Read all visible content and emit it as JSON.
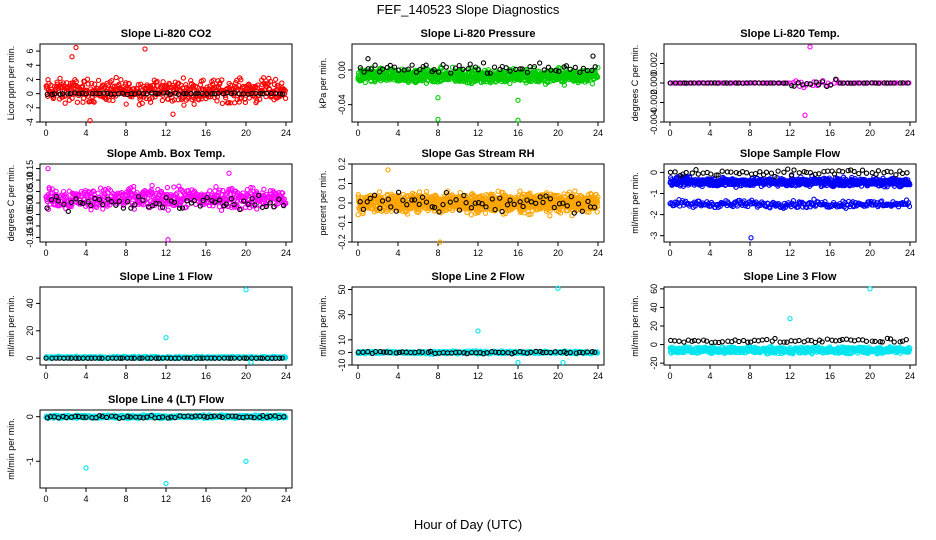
{
  "page_title": "FEF_140523  Slope Diagnostics",
  "x_axis_title": "Hour of Day (UTC)",
  "chart_data": [
    {
      "type": "scatter",
      "title": "Slope Li-820 CO2",
      "ylabel": "Licor ppm per min.",
      "xlim": [
        0,
        24
      ],
      "x_ticks": [
        0,
        4,
        8,
        12,
        16,
        20,
        24
      ],
      "ylim": [
        -4,
        7
      ],
      "y_ticks": [
        -4,
        -2,
        0,
        2,
        4,
        6
      ],
      "grid": false,
      "series": [
        {
          "color": "#ff0000",
          "pattern": "scatter",
          "center": 0.4,
          "spread": 1.8,
          "points": 500,
          "extremes": [
            {
              "x": 3.0,
              "y": 6.5
            },
            {
              "x": 9.9,
              "y": 6.3
            },
            {
              "x": 4.4,
              "y": -3.8
            },
            {
              "x": 12.7,
              "y": -2.9
            },
            {
              "x": 2.6,
              "y": 5.2
            }
          ]
        },
        {
          "color": "#000000",
          "pattern": "line",
          "center": 0.0,
          "spread": 0.3,
          "points": 60
        }
      ]
    },
    {
      "type": "scatter",
      "title": "Slope Li-820 Pressure",
      "ylabel": "kPa per min.",
      "xlim": [
        0,
        24
      ],
      "x_ticks": [
        0,
        4,
        8,
        12,
        16,
        20,
        24
      ],
      "ylim": [
        -0.06,
        0.03
      ],
      "y_ticks": [
        -0.04,
        0.0
      ],
      "grid": false,
      "series": [
        {
          "color": "#00cc00",
          "pattern": "band",
          "center": -0.007,
          "spread": 0.012,
          "points": 900,
          "extremes": [
            {
              "x": 8.0,
              "y": -0.057
            },
            {
              "x": 16.0,
              "y": -0.058
            },
            {
              "x": 8.0,
              "y": -0.032
            },
            {
              "x": 16.0,
              "y": -0.035
            }
          ]
        },
        {
          "color": "#000000",
          "pattern": "scatter",
          "center": 0.002,
          "spread": 0.006,
          "points": 60,
          "extremes": [
            {
              "x": 1.0,
              "y": 0.013
            },
            {
              "x": 23.5,
              "y": 0.016
            }
          ]
        }
      ]
    },
    {
      "type": "scatter",
      "title": "Slope Li-820 Temp.",
      "ylabel": "degrees C per min.",
      "xlim": [
        0,
        24
      ],
      "x_ticks": [
        0,
        4,
        8,
        12,
        16,
        20,
        24
      ],
      "ylim": [
        -0.004,
        0.004
      ],
      "y_ticks": [
        -0.004,
        -0.002,
        0.0,
        0.002
      ],
      "grid": false,
      "series": [
        {
          "color": "#ff00ff",
          "pattern": "line",
          "center": 0.0,
          "spread": 5e-05,
          "points": 90,
          "burst": {
            "x_from": 12,
            "x_to": 17,
            "spread": 0.0013
          },
          "extremes": [
            {
              "x": 14.0,
              "y": 0.0037
            },
            {
              "x": 13.5,
              "y": -0.0033
            }
          ]
        },
        {
          "color": "#000000",
          "pattern": "line",
          "center": 0.0,
          "spread": 3e-05,
          "points": 60,
          "burst": {
            "x_from": 12,
            "x_to": 17,
            "spread": 0.0012
          }
        }
      ]
    },
    {
      "type": "scatter",
      "title": "Slope Amb. Box Temp.",
      "ylabel": "degrees C per min.",
      "xlim": [
        0,
        24
      ],
      "x_ticks": [
        0,
        4,
        8,
        12,
        16,
        20,
        24
      ],
      "ylim": [
        -0.17,
        0.17
      ],
      "y_ticks": [
        -0.15,
        -0.1,
        -0.05,
        0.0,
        0.05,
        0.1,
        0.15
      ],
      "grid": false,
      "series": [
        {
          "color": "#ff00ff",
          "pattern": "scatter",
          "center": 0.02,
          "spread": 0.05,
          "points": 550,
          "extremes": [
            {
              "x": 0.2,
              "y": 0.15
            },
            {
              "x": 12.2,
              "y": -0.16
            },
            {
              "x": 18.3,
              "y": 0.13
            }
          ]
        },
        {
          "color": "#000000",
          "pattern": "scatter",
          "center": 0.0,
          "spread": 0.04,
          "points": 60
        }
      ]
    },
    {
      "type": "scatter",
      "title": "Slope Gas Stream RH",
      "ylabel": "percent per min.",
      "xlim": [
        0,
        24
      ],
      "x_ticks": [
        0,
        4,
        8,
        12,
        16,
        20,
        24
      ],
      "ylim": [
        -0.2,
        0.2
      ],
      "y_ticks": [
        -0.2,
        -0.1,
        0.0,
        0.1,
        0.2
      ],
      "grid": false,
      "series": [
        {
          "color": "#ffa500",
          "pattern": "band",
          "center": 0.0,
          "spread": 0.07,
          "points": 1100,
          "extremes": [
            {
              "x": 8.2,
              "y": -0.2
            },
            {
              "x": 3.0,
              "y": 0.17
            }
          ]
        },
        {
          "color": "#000000",
          "pattern": "scatter",
          "center": 0.0,
          "spread": 0.06,
          "points": 60
        }
      ]
    },
    {
      "type": "scatter",
      "title": "Slope Sample Flow",
      "ylabel": "ml/min per min.",
      "xlim": [
        0,
        24
      ],
      "x_ticks": [
        0,
        4,
        8,
        12,
        16,
        20,
        24
      ],
      "ylim": [
        -3.3,
        0.4
      ],
      "y_ticks": [
        -3,
        -2,
        -1,
        0
      ],
      "grid": false,
      "series": [
        {
          "color": "#0000ff",
          "pattern": "band",
          "center": -0.45,
          "spread": 0.3,
          "points": 700,
          "extremes": [
            {
              "x": 8.1,
              "y": -3.1
            }
          ]
        },
        {
          "color": "#0000ff",
          "pattern": "band",
          "center": -1.5,
          "spread": 0.25,
          "points": 250
        },
        {
          "color": "#000000",
          "pattern": "scatter",
          "center": 0.0,
          "spread": 0.18,
          "points": 60
        }
      ]
    },
    {
      "type": "scatter",
      "title": "Slope Line 1 Flow",
      "ylabel": "ml/min per min.",
      "xlim": [
        0,
        24
      ],
      "x_ticks": [
        0,
        4,
        8,
        12,
        16,
        20,
        24
      ],
      "ylim": [
        -5,
        52
      ],
      "y_ticks": [
        0,
        20,
        40
      ],
      "grid": false,
      "series": [
        {
          "color": "#00e5ee",
          "pattern": "band",
          "center": 0.5,
          "spread": 1.0,
          "points": 500,
          "extremes": [
            {
              "x": 20.0,
              "y": 50
            },
            {
              "x": 12.0,
              "y": 15
            },
            {
              "x": 20.5,
              "y": -3
            }
          ]
        },
        {
          "color": "#000000",
          "pattern": "line",
          "center": 0.0,
          "spread": 0.1,
          "points": 60
        }
      ]
    },
    {
      "type": "scatter",
      "title": "Slope Line 2 Flow",
      "ylabel": "ml/min per min.",
      "xlim": [
        0,
        24
      ],
      "x_ticks": [
        0,
        4,
        8,
        12,
        16,
        20,
        24
      ],
      "ylim": [
        -10,
        52
      ],
      "y_ticks": [
        -10,
        0,
        10,
        30,
        50
      ],
      "grid": false,
      "series": [
        {
          "color": "#00e5ee",
          "pattern": "band",
          "center": 0.0,
          "spread": 1.5,
          "points": 500,
          "extremes": [
            {
              "x": 20.0,
              "y": 51
            },
            {
              "x": 12.0,
              "y": 17
            },
            {
              "x": 16.0,
              "y": -8
            },
            {
              "x": 20.5,
              "y": -8
            }
          ]
        },
        {
          "color": "#000000",
          "pattern": "scatter",
          "center": 0.0,
          "spread": 1.0,
          "points": 60
        }
      ]
    },
    {
      "type": "scatter",
      "title": "Slope Line 3 Flow",
      "ylabel": "ml/min per min.",
      "xlim": [
        0,
        24
      ],
      "x_ticks": [
        0,
        4,
        8,
        12,
        16,
        20,
        24
      ],
      "ylim": [
        -22,
        62
      ],
      "y_ticks": [
        -20,
        0,
        20,
        40,
        60
      ],
      "grid": false,
      "series": [
        {
          "color": "#00e5ee",
          "pattern": "band",
          "center": -6,
          "spread": 5,
          "points": 700,
          "extremes": [
            {
              "x": 20.0,
              "y": 60
            },
            {
              "x": 12.0,
              "y": 28
            }
          ]
        },
        {
          "color": "#000000",
          "pattern": "scatter",
          "center": 4,
          "spread": 2.5,
          "points": 60
        }
      ]
    },
    {
      "type": "scatter",
      "title": "Slope Line 4 (LT) Flow",
      "ylabel": "ml/min per min.",
      "xlim": [
        0,
        24
      ],
      "x_ticks": [
        0,
        4,
        8,
        12,
        16,
        20,
        24
      ],
      "ylim": [
        -1.6,
        0.15
      ],
      "y_ticks": [
        -1.0,
        0.0
      ],
      "grid": false,
      "series": [
        {
          "color": "#00e5ee",
          "pattern": "band",
          "center": 0.0,
          "spread": 0.05,
          "points": 600,
          "extremes": [
            {
              "x": 4.0,
              "y": -1.15
            },
            {
              "x": 20.0,
              "y": -1.0
            },
            {
              "x": 12.0,
              "y": -1.5
            }
          ]
        },
        {
          "color": "#000000",
          "pattern": "scatter",
          "center": 0.0,
          "spread": 0.04,
          "points": 60
        }
      ]
    }
  ]
}
